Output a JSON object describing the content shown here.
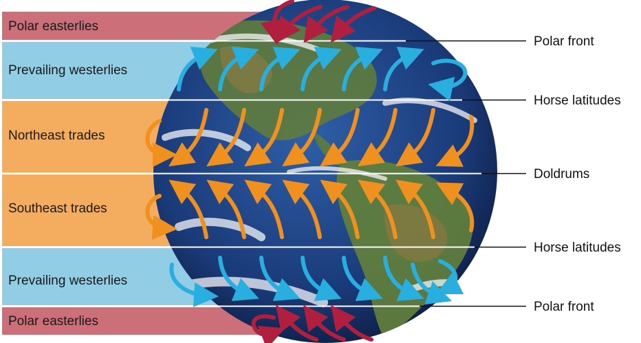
{
  "bands": [
    {
      "key": "polar_north",
      "label": "Polar easterlies",
      "color": "#cc6f78"
    },
    {
      "key": "westerlies_north",
      "label": "Prevailing westerlies",
      "color": "#92cde6"
    },
    {
      "key": "trades_north",
      "label": "Northeast trades",
      "color": "#f4ac5f"
    },
    {
      "key": "trades_south",
      "label": "Southeast trades",
      "color": "#f4ac5f"
    },
    {
      "key": "westerlies_south",
      "label": "Prevailing westerlies",
      "color": "#92cde6"
    },
    {
      "key": "polar_south",
      "label": "Polar easterlies",
      "color": "#cc6f78"
    }
  ],
  "boundaries": [
    {
      "label": "Polar front"
    },
    {
      "label": "Horse latitudes"
    },
    {
      "label": "Doldrums"
    },
    {
      "label": "Horse latitudes"
    },
    {
      "label": "Polar front"
    }
  ],
  "colors": {
    "polar_arrow": "#b0203e",
    "westerly_arrow": "#29aee0",
    "trade_arrow": "#f0901e",
    "ocean": "#1d3c78",
    "land": "#5a7a3a",
    "cloud": "#f4f6f8"
  }
}
